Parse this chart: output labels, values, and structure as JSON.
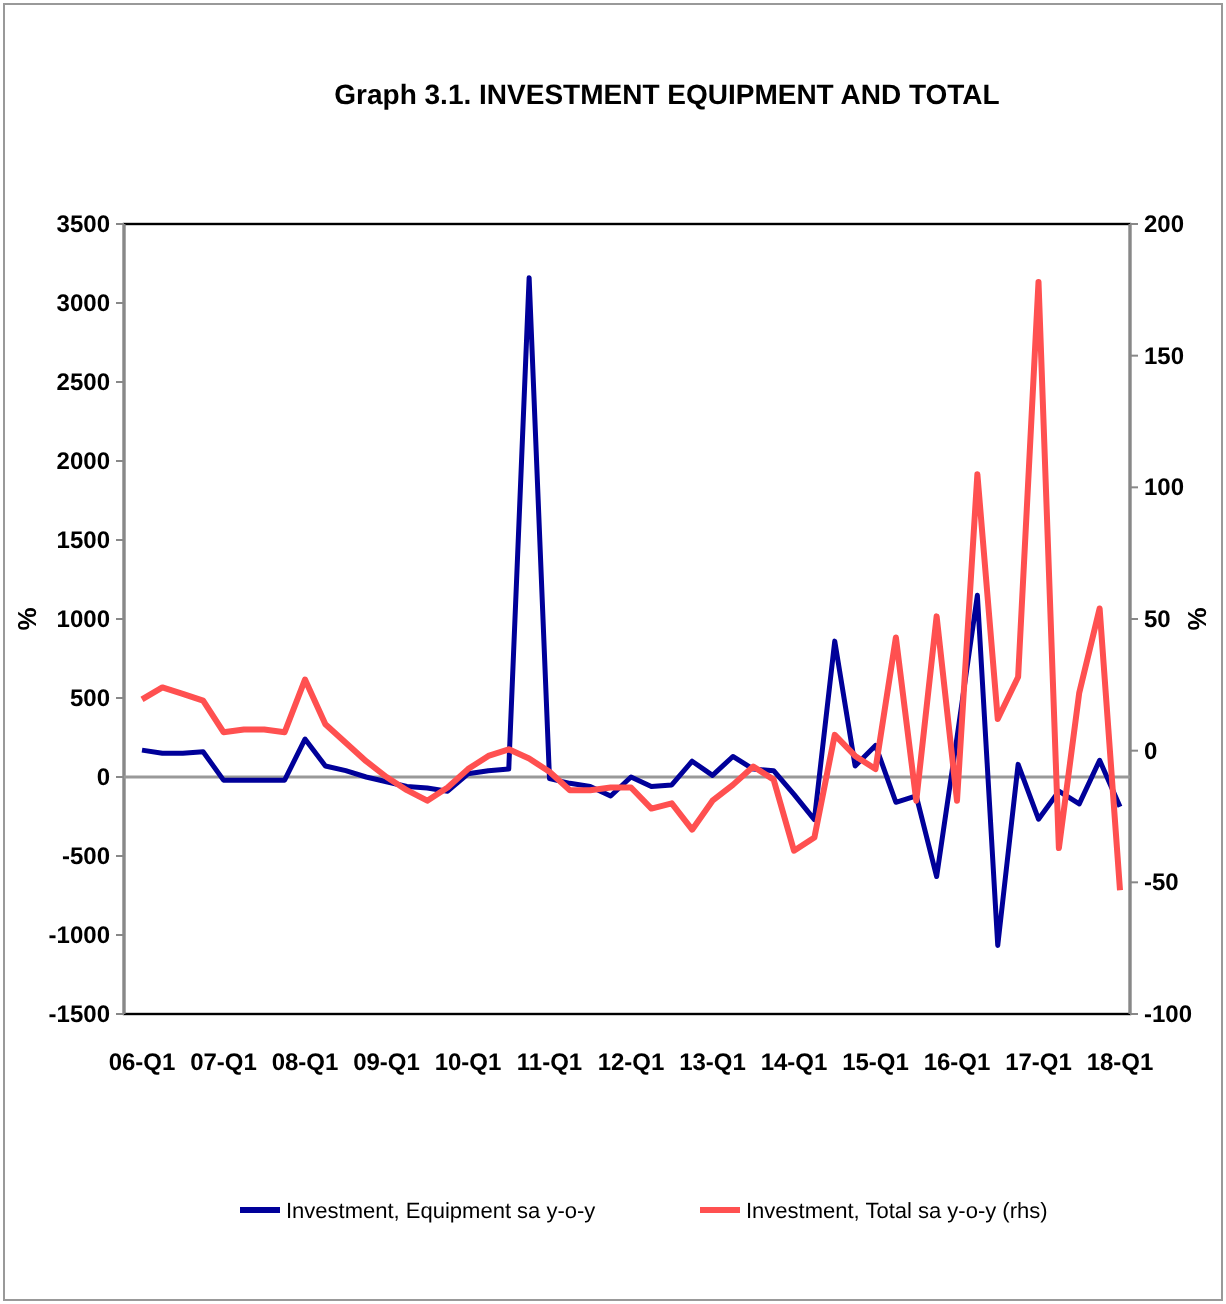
{
  "chart_data": {
    "type": "line",
    "title": "Graph 3.1. INVESTMENT EQUIPMENT AND TOTAL",
    "ylabel": "%",
    "y2label": "%",
    "categories": [
      "06-Q1",
      null,
      null,
      null,
      "07-Q1",
      null,
      null,
      null,
      "08-Q1",
      null,
      null,
      null,
      "09-Q1",
      null,
      null,
      null,
      "10-Q1",
      null,
      null,
      null,
      "11-Q1",
      null,
      null,
      null,
      "12-Q1",
      null,
      null,
      null,
      "13-Q1",
      null,
      null,
      null,
      "14-Q1",
      null,
      null,
      null,
      "15-Q1",
      null,
      null,
      null,
      "16-Q1",
      null,
      null,
      null,
      "17-Q1",
      null,
      null,
      null,
      "18-Q1"
    ],
    "series": [
      {
        "name": "Investment, Equipment sa y-o-y",
        "color": "#000099",
        "values": [
          170,
          150,
          150,
          160,
          -20,
          -20,
          -20,
          -20,
          240,
          70,
          40,
          0,
          -30,
          -60,
          -70,
          -90,
          20,
          40,
          50,
          3160,
          -10,
          -40,
          -60,
          -120,
          0,
          -60,
          -50,
          100,
          10,
          130,
          50,
          40,
          -110,
          -270,
          860,
          70,
          200,
          -160,
          -120,
          -630,
          250,
          1150,
          -1066,
          80,
          -267,
          -90,
          -170,
          106,
          -188
        ]
      },
      {
        "name": "Investment, Total sa y-o-y (rhs)",
        "color": "#ff5050",
        "axis": "y2",
        "values": [
          19.5,
          24,
          21.6,
          19,
          7,
          8,
          8,
          7,
          27,
          10,
          3,
          -4,
          -10,
          -15,
          -19,
          -14,
          -7,
          -2,
          0.5,
          -3,
          -8,
          -15,
          -15,
          -14,
          -14,
          -22,
          -20,
          -30,
          -19,
          -13,
          -6,
          -11,
          -38,
          -33,
          6,
          -2,
          -7,
          43,
          -19,
          51,
          -19,
          105,
          12,
          28,
          178,
          -37,
          22,
          54,
          -53
        ]
      }
    ],
    "ylim": [
      -1500,
      3500
    ],
    "yticks": [
      -1500,
      -1000,
      -500,
      0,
      500,
      1000,
      1500,
      2000,
      2500,
      3000,
      3500
    ],
    "y2lim": [
      -100,
      200
    ],
    "y2ticks": [
      -100,
      -50,
      0,
      50,
      100,
      150,
      200
    ],
    "ref_lines": [
      {
        "axis": "y",
        "value": 0,
        "color": "#999999"
      }
    ],
    "legend": "bottom",
    "grid": false
  }
}
